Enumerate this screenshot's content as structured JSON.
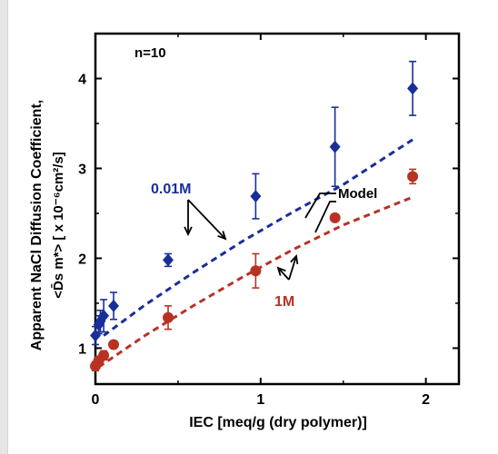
{
  "chart_data": {
    "type": "scatter",
    "xlabel": "IEC [meq/g (dry polymer)]",
    "ylabel_line1": "Apparent NaCl Diffusion Coefficient,",
    "ylabel_line2": "<D̄s m*> [ x 10⁻⁶cm²/s]",
    "xlim": [
      0,
      2.2
    ],
    "ylim": [
      0.6,
      4.5
    ],
    "x_ticks": [
      0,
      1,
      2
    ],
    "x_tick_labels": [
      "0",
      "1",
      "2"
    ],
    "y_ticks": [
      1,
      2,
      3,
      4
    ],
    "y_tick_labels": [
      "1",
      "2",
      "3",
      "4"
    ],
    "grid": false,
    "series": [
      {
        "name": "0.01M",
        "color": "#1a2e9a",
        "marker": "diamond",
        "points": [
          {
            "x": 0.0,
            "y": 1.14,
            "err": 0.1
          },
          {
            "x": 0.02,
            "y": 1.26,
            "err": 0.1
          },
          {
            "x": 0.03,
            "y": 1.3,
            "err": 0.12
          },
          {
            "x": 0.05,
            "y": 1.36,
            "err": 0.18
          },
          {
            "x": 0.11,
            "y": 1.47,
            "err": 0.15
          },
          {
            "x": 0.44,
            "y": 1.98,
            "err": 0.07
          },
          {
            "x": 0.97,
            "y": 2.69,
            "err": 0.25
          },
          {
            "x": 1.45,
            "y": 3.24,
            "err": 0.44
          },
          {
            "x": 1.92,
            "y": 3.89,
            "err": 0.3
          }
        ]
      },
      {
        "name": "1M",
        "color": "#b83224",
        "marker": "circle",
        "points": [
          {
            "x": 0.0,
            "y": 0.8,
            "err": 0.05
          },
          {
            "x": 0.02,
            "y": 0.86,
            "err": 0.05
          },
          {
            "x": 0.05,
            "y": 0.92,
            "err": 0.05
          },
          {
            "x": 0.11,
            "y": 1.04,
            "err": 0.03
          },
          {
            "x": 0.44,
            "y": 1.34,
            "err": 0.13
          },
          {
            "x": 0.97,
            "y": 1.86,
            "err": 0.19
          },
          {
            "x": 1.45,
            "y": 2.45,
            "err": 0.04
          },
          {
            "x": 1.92,
            "y": 2.91,
            "err": 0.08
          }
        ]
      }
    ],
    "model_curves": [
      {
        "series": "0.01M",
        "color": "#1a2e9a",
        "points": [
          [
            0.05,
            1.14
          ],
          [
            0.3,
            1.48
          ],
          [
            0.6,
            1.85
          ],
          [
            0.9,
            2.2
          ],
          [
            1.2,
            2.52
          ],
          [
            1.5,
            2.82
          ],
          [
            1.92,
            3.32
          ]
        ]
      },
      {
        "series": "1M",
        "color": "#b83224",
        "points": [
          [
            0.02,
            0.79
          ],
          [
            0.3,
            1.14
          ],
          [
            0.6,
            1.48
          ],
          [
            0.9,
            1.8
          ],
          [
            1.2,
            2.1
          ],
          [
            1.5,
            2.37
          ],
          [
            1.92,
            2.68
          ]
        ]
      }
    ],
    "annotations": {
      "n_label": "n=10",
      "label_001M": "0.01M",
      "label_1M": "1M",
      "label_model": "Model"
    }
  }
}
